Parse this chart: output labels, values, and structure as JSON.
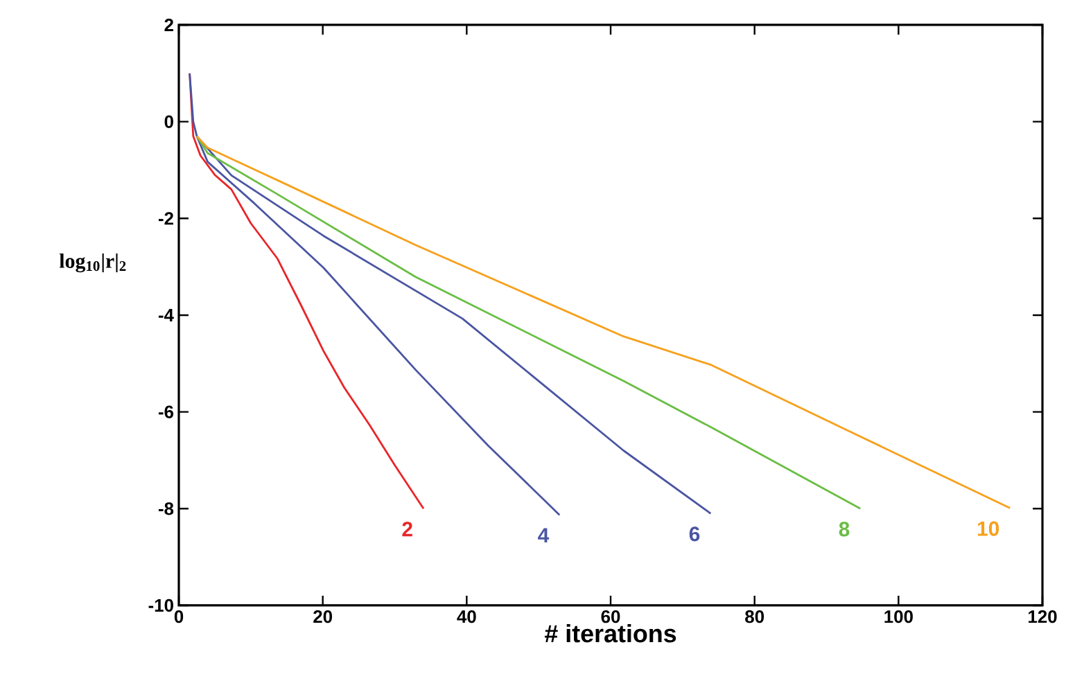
{
  "chart_data": {
    "type": "line",
    "xlabel": "# iterations",
    "ylabel": "log$_{10}$|r|$_{2}$",
    "xlim": [
      0,
      120
    ],
    "ylim": [
      -10,
      2
    ],
    "xticks": [
      0,
      20,
      40,
      60,
      80,
      100,
      120
    ],
    "yticks": [
      -10,
      -8,
      -6,
      -4,
      -2,
      0,
      2
    ],
    "grid": false,
    "marker": "none",
    "line_style": "solid",
    "series": [
      {
        "name": "2",
        "color": "#e8262a",
        "x": [
          1.5,
          2,
          3,
          5,
          7.3,
          10,
          13.7,
          17,
          20.1,
          23,
          26.5,
          30,
          34
        ],
        "values": [
          1,
          -0.3,
          -0.7,
          -1.1,
          -1.4,
          -2.1,
          -2.83,
          -3.8,
          -4.74,
          -5.5,
          -6.27,
          -7.1,
          -8.0
        ]
      },
      {
        "name": "4",
        "color": "#4a55a2",
        "x": [
          1.5,
          2,
          2.5,
          4,
          10.5,
          20.1,
          32.9,
          43,
          52.9
        ],
        "values": [
          1,
          0,
          -0.3,
          -0.83,
          -1.69,
          -3.02,
          -5.13,
          -6.7,
          -8.13
        ]
      },
      {
        "name": "6",
        "color": "#4a55a2",
        "x": [
          2.5,
          7.3,
          20.1,
          39.4,
          61.8,
          73.9
        ],
        "values": [
          -0.3,
          -1.11,
          -2.36,
          -4.07,
          -6.8,
          -8.1
        ]
      },
      {
        "name": "8",
        "color": "#6bbd45",
        "x": [
          2.5,
          4,
          13.7,
          32.9,
          61.8,
          74,
          94.7
        ],
        "values": [
          -0.3,
          -0.65,
          -1.5,
          -3.21,
          -5.36,
          -6.32,
          -8.0
        ]
      },
      {
        "name": "10",
        "color": "#f7a01c",
        "x": [
          2.5,
          4,
          13.7,
          32.9,
          61.8,
          74,
          93.3,
          115.5
        ],
        "values": [
          -0.3,
          -0.54,
          -1.21,
          -2.55,
          -4.44,
          -5.03,
          -6.41,
          -7.99
        ]
      }
    ]
  }
}
